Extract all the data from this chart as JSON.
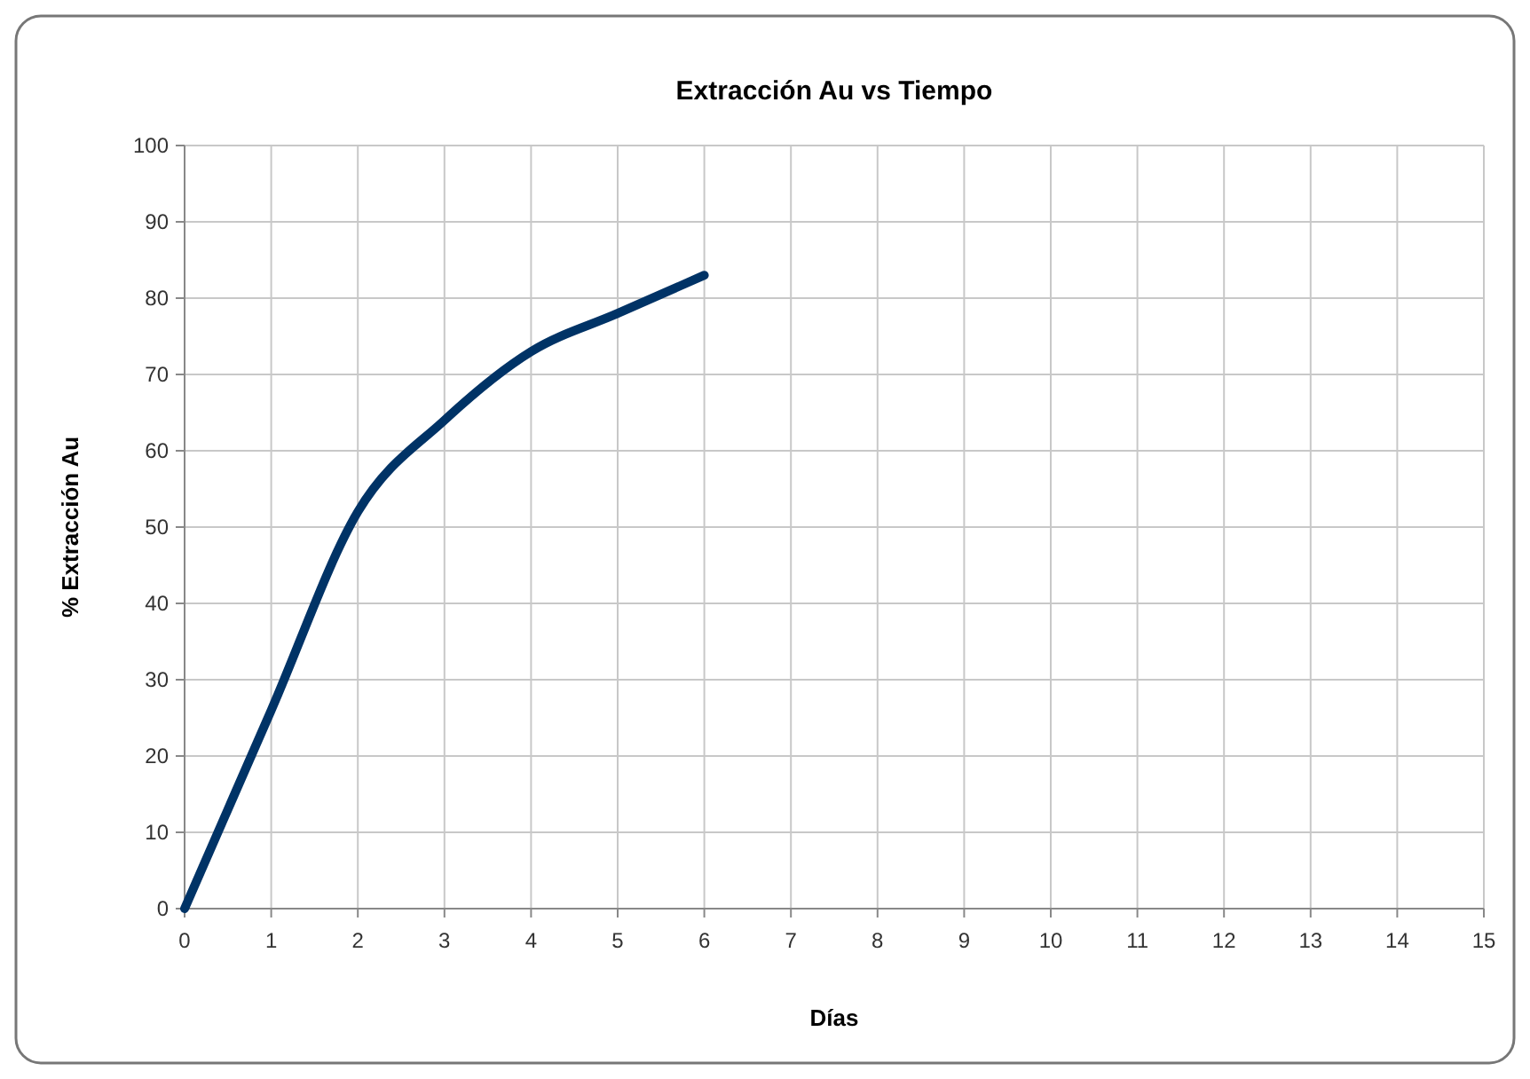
{
  "chart_data": {
    "type": "line",
    "title": "Extracción Au vs Tiempo",
    "xlabel": "Días",
    "ylabel": "% Extracción Au",
    "x": [
      0,
      1,
      2,
      3,
      4,
      5,
      6
    ],
    "series": [
      {
        "color": "#003366",
        "values": [
          0,
          26,
          52,
          64,
          73,
          78,
          83
        ]
      }
    ],
    "xlim": [
      0,
      15
    ],
    "xticks": [
      0,
      1,
      2,
      3,
      4,
      5,
      6,
      7,
      8,
      9,
      10,
      11,
      12,
      13,
      14,
      15
    ],
    "ylim": [
      0,
      100
    ],
    "yticks": [
      0,
      10,
      20,
      30,
      40,
      50,
      60,
      70,
      80,
      90,
      100
    ],
    "grid": true,
    "marker": "none",
    "line_style": "solid"
  }
}
